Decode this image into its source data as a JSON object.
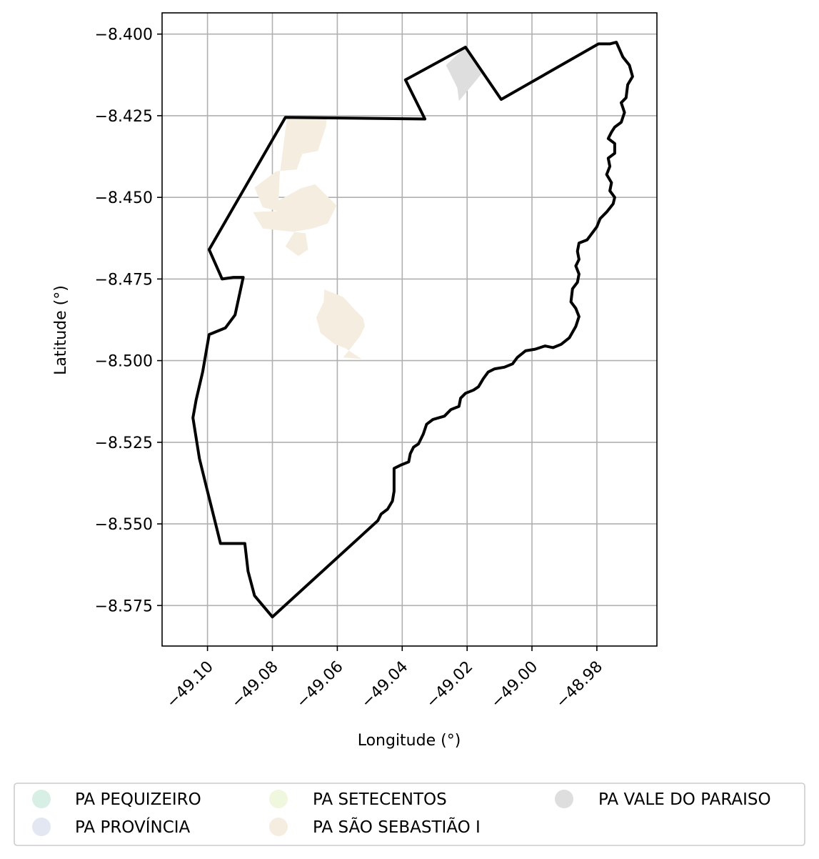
{
  "map": {
    "xlabel": "Longitude (°)",
    "ylabel": "Latitude (°)",
    "xlim": [
      -49.114,
      -48.9615
    ],
    "ylim": [
      -8.5874,
      -8.3935
    ],
    "xticks": [
      -49.1,
      -49.08,
      -49.06,
      -49.04,
      -49.02,
      -49.0,
      -48.98
    ],
    "xtick_labels": [
      "−49.10",
      "−49.08",
      "−49.06",
      "−49.04",
      "−49.02",
      "−49.00",
      "−48.98"
    ],
    "yticks": [
      -8.4,
      -8.425,
      -8.45,
      -8.475,
      -8.5,
      -8.525,
      -8.55,
      -8.575
    ],
    "ytick_labels": [
      "−8.400",
      "−8.425",
      "−8.450",
      "−8.475",
      "−8.500",
      "−8.525",
      "−8.550",
      "−8.575"
    ],
    "grid": true,
    "boundary_color": "#000000",
    "boundary": [
      [
        -49.076,
        -8.4255
      ],
      [
        -49.033,
        -8.426
      ],
      [
        -49.039,
        -8.414
      ],
      [
        -49.0205,
        -8.404
      ],
      [
        -49.0095,
        -8.42
      ],
      [
        -48.9795,
        -8.403
      ],
      [
        -48.976,
        -8.403
      ],
      [
        -48.974,
        -8.4025
      ],
      [
        -48.972,
        -8.407
      ],
      [
        -48.97,
        -8.4095
      ],
      [
        -48.969,
        -8.413
      ],
      [
        -48.9705,
        -8.4155
      ],
      [
        -48.971,
        -8.4195
      ],
      [
        -48.9725,
        -8.421
      ],
      [
        -48.9715,
        -8.424
      ],
      [
        -48.9725,
        -8.427
      ],
      [
        -48.9745,
        -8.4285
      ],
      [
        -48.9755,
        -8.43
      ],
      [
        -48.9765,
        -8.432
      ],
      [
        -48.9745,
        -8.4335
      ],
      [
        -48.9745,
        -8.4365
      ],
      [
        -48.9765,
        -8.438
      ],
      [
        -48.976,
        -8.4405
      ],
      [
        -48.977,
        -8.443
      ],
      [
        -48.9755,
        -8.4455
      ],
      [
        -48.976,
        -8.448
      ],
      [
        -48.9745,
        -8.45
      ],
      [
        -48.975,
        -8.452
      ],
      [
        -48.977,
        -8.4545
      ],
      [
        -48.979,
        -8.4565
      ],
      [
        -48.98,
        -8.459
      ],
      [
        -48.9815,
        -8.461
      ],
      [
        -48.983,
        -8.463
      ],
      [
        -48.9855,
        -8.464
      ],
      [
        -48.986,
        -8.4665
      ],
      [
        -48.9855,
        -8.469
      ],
      [
        -48.9865,
        -8.471
      ],
      [
        -48.9855,
        -8.4735
      ],
      [
        -48.986,
        -8.476
      ],
      [
        -48.9875,
        -8.478
      ],
      [
        -48.988,
        -8.482
      ],
      [
        -48.9865,
        -8.484
      ],
      [
        -48.9855,
        -8.4865
      ],
      [
        -48.9865,
        -8.4895
      ],
      [
        -48.9885,
        -8.493
      ],
      [
        -48.991,
        -8.495
      ],
      [
        -48.9935,
        -8.496
      ],
      [
        -48.996,
        -8.4955
      ],
      [
        -48.999,
        -8.4965
      ],
      [
        -49.002,
        -8.497
      ],
      [
        -49.0045,
        -8.499
      ],
      [
        -49.006,
        -8.501
      ],
      [
        -49.0085,
        -8.502
      ],
      [
        -49.0115,
        -8.5025
      ],
      [
        -49.0135,
        -8.5035
      ],
      [
        -49.015,
        -8.5055
      ],
      [
        -49.0165,
        -8.508
      ],
      [
        -49.018,
        -8.509
      ],
      [
        -49.0205,
        -8.51
      ],
      [
        -49.022,
        -8.5115
      ],
      [
        -49.0225,
        -8.514
      ],
      [
        -49.025,
        -8.515
      ],
      [
        -49.027,
        -8.517
      ],
      [
        -49.0305,
        -8.518
      ],
      [
        -49.0325,
        -8.5195
      ],
      [
        -49.0335,
        -8.5225
      ],
      [
        -49.035,
        -8.5255
      ],
      [
        -49.0365,
        -8.5265
      ],
      [
        -49.0375,
        -8.5285
      ],
      [
        -49.038,
        -8.531
      ],
      [
        -49.0405,
        -8.532
      ],
      [
        -49.0425,
        -8.533
      ],
      [
        -49.0425,
        -8.536
      ],
      [
        -49.0425,
        -8.54
      ],
      [
        -49.043,
        -8.543
      ],
      [
        -49.0445,
        -8.5455
      ],
      [
        -49.0465,
        -8.547
      ],
      [
        -49.0475,
        -8.549
      ],
      [
        -49.08,
        -8.5785
      ],
      [
        -49.0855,
        -8.572
      ],
      [
        -49.0875,
        -8.5645
      ],
      [
        -49.0885,
        -8.556
      ],
      [
        -49.096,
        -8.556
      ],
      [
        -49.0975,
        -8.55
      ],
      [
        -49.1005,
        -8.538
      ],
      [
        -49.1025,
        -8.53
      ],
      [
        -49.1045,
        -8.5175
      ],
      [
        -49.1035,
        -8.512
      ],
      [
        -49.1015,
        -8.5035
      ],
      [
        -49.0995,
        -8.492
      ],
      [
        -49.0945,
        -8.49
      ],
      [
        -49.0915,
        -8.486
      ],
      [
        -49.089,
        -8.4745
      ],
      [
        -49.092,
        -8.4745
      ],
      [
        -49.0955,
        -8.475
      ],
      [
        -49.0995,
        -8.466
      ]
    ],
    "regions": [
      {
        "name": "PA SÃO SEBASTIÃO I",
        "color": "#f5ede0",
        "polygons": [
          [
            [
              -49.0755,
              -8.4255
            ],
            [
              -49.0632,
              -8.4255
            ],
            [
              -49.0635,
              -8.4283
            ],
            [
              -49.066,
              -8.4358
            ],
            [
              -49.0708,
              -8.4367
            ],
            [
              -49.0725,
              -8.4415
            ],
            [
              -49.0788,
              -8.442
            ],
            [
              -49.0855,
              -8.447
            ],
            [
              -49.083,
              -8.453
            ],
            [
              -49.0782,
              -8.4542
            ],
            [
              -49.0778,
              -8.4435
            ]
          ],
          [
            [
              -49.0782,
              -8.4542
            ],
            [
              -49.083,
              -8.453
            ],
            [
              -49.0785,
              -8.4512
            ],
            [
              -49.0712,
              -8.4472
            ],
            [
              -49.0668,
              -8.446
            ],
            [
              -49.0602,
              -8.4525
            ],
            [
              -49.063,
              -8.458
            ],
            [
              -49.0675,
              -8.4595
            ],
            [
              -49.0732,
              -8.4605
            ],
            [
              -49.076,
              -8.465
            ],
            [
              -49.072,
              -8.468
            ],
            [
              -49.069,
              -8.466
            ],
            [
              -49.0698,
              -8.461
            ],
            [
              -49.083,
              -8.4595
            ],
            [
              -49.086,
              -8.4545
            ]
          ],
          [
            [
              -49.064,
              -8.4782
            ],
            [
              -49.0582,
              -8.4805
            ],
            [
              -49.0545,
              -8.4845
            ],
            [
              -49.052,
              -8.487
            ],
            [
              -49.0515,
              -8.4895
            ],
            [
              -49.053,
              -8.4925
            ],
            [
              -49.0565,
              -8.497
            ],
            [
              -49.0582,
              -8.499
            ],
            [
              -49.0525,
              -8.4995
            ],
            [
              -49.0575,
              -8.4962
            ],
            [
              -49.0608,
              -8.495
            ],
            [
              -49.0652,
              -8.4915
            ],
            [
              -49.0665,
              -8.4868
            ],
            [
              -49.0642,
              -8.482
            ]
          ]
        ]
      },
      {
        "name": "PA VALE DO PARAISO",
        "color": "#dedede",
        "polygons": [
          [
            [
              -49.0265,
              -8.4095
            ],
            [
              -49.0205,
              -8.404
            ],
            [
              -49.015,
              -8.4115
            ],
            [
              -49.0225,
              -8.4205
            ],
            [
              -49.023,
              -8.4165
            ]
          ]
        ]
      }
    ]
  },
  "legend": {
    "placement": "bottom-center",
    "entries": [
      {
        "label": "PA PEQUIZEIRO",
        "color": "#d8efe5"
      },
      {
        "label": "PA PROVÍNCIA",
        "color": "#e2e7f1"
      },
      {
        "label": "PA SETECENTOS",
        "color": "#eff7de"
      },
      {
        "label": "PA SÃO SEBASTIÃO I",
        "color": "#f5ede0"
      },
      {
        "label": "PA VALE DO PARAISO",
        "color": "#dedede"
      }
    ]
  }
}
